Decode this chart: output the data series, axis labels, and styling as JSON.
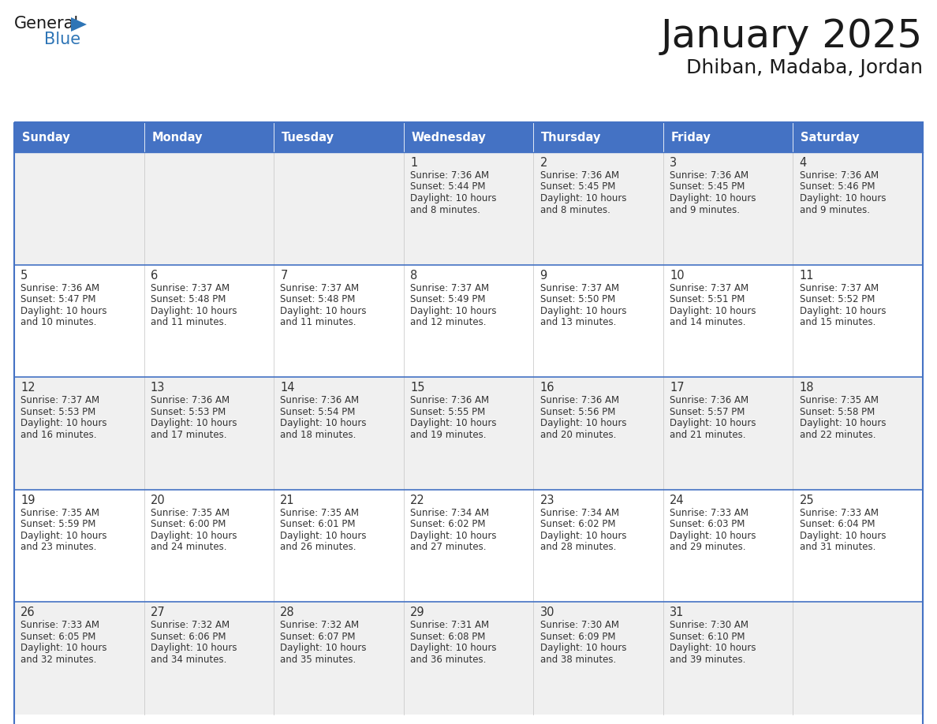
{
  "title": "January 2025",
  "subtitle": "Dhiban, Madaba, Jordan",
  "days_of_week": [
    "Sunday",
    "Monday",
    "Tuesday",
    "Wednesday",
    "Thursday",
    "Friday",
    "Saturday"
  ],
  "header_bg": "#4472C4",
  "header_text": "#FFFFFF",
  "cell_bg_light": "#F0F0F0",
  "cell_bg_white": "#FFFFFF",
  "border_color": "#4472C4",
  "row_separator_color": "#4472C4",
  "title_color": "#1a1a1a",
  "text_color": "#333333",
  "logo_general_color": "#1a1a1a",
  "logo_blue_color": "#2E75B6",
  "calendar_data": [
    [
      {
        "day": null,
        "sunrise": null,
        "sunset": null,
        "daylight": null
      },
      {
        "day": null,
        "sunrise": null,
        "sunset": null,
        "daylight": null
      },
      {
        "day": null,
        "sunrise": null,
        "sunset": null,
        "daylight": null
      },
      {
        "day": 1,
        "sunrise": "7:36 AM",
        "sunset": "5:44 PM",
        "daylight": "10 hours and 8 minutes"
      },
      {
        "day": 2,
        "sunrise": "7:36 AM",
        "sunset": "5:45 PM",
        "daylight": "10 hours and 8 minutes"
      },
      {
        "day": 3,
        "sunrise": "7:36 AM",
        "sunset": "5:45 PM",
        "daylight": "10 hours and 9 minutes"
      },
      {
        "day": 4,
        "sunrise": "7:36 AM",
        "sunset": "5:46 PM",
        "daylight": "10 hours and 9 minutes"
      }
    ],
    [
      {
        "day": 5,
        "sunrise": "7:36 AM",
        "sunset": "5:47 PM",
        "daylight": "10 hours and 10 minutes"
      },
      {
        "day": 6,
        "sunrise": "7:37 AM",
        "sunset": "5:48 PM",
        "daylight": "10 hours and 11 minutes"
      },
      {
        "day": 7,
        "sunrise": "7:37 AM",
        "sunset": "5:48 PM",
        "daylight": "10 hours and 11 minutes"
      },
      {
        "day": 8,
        "sunrise": "7:37 AM",
        "sunset": "5:49 PM",
        "daylight": "10 hours and 12 minutes"
      },
      {
        "day": 9,
        "sunrise": "7:37 AM",
        "sunset": "5:50 PM",
        "daylight": "10 hours and 13 minutes"
      },
      {
        "day": 10,
        "sunrise": "7:37 AM",
        "sunset": "5:51 PM",
        "daylight": "10 hours and 14 minutes"
      },
      {
        "day": 11,
        "sunrise": "7:37 AM",
        "sunset": "5:52 PM",
        "daylight": "10 hours and 15 minutes"
      }
    ],
    [
      {
        "day": 12,
        "sunrise": "7:37 AM",
        "sunset": "5:53 PM",
        "daylight": "10 hours and 16 minutes"
      },
      {
        "day": 13,
        "sunrise": "7:36 AM",
        "sunset": "5:53 PM",
        "daylight": "10 hours and 17 minutes"
      },
      {
        "day": 14,
        "sunrise": "7:36 AM",
        "sunset": "5:54 PM",
        "daylight": "10 hours and 18 minutes"
      },
      {
        "day": 15,
        "sunrise": "7:36 AM",
        "sunset": "5:55 PM",
        "daylight": "10 hours and 19 minutes"
      },
      {
        "day": 16,
        "sunrise": "7:36 AM",
        "sunset": "5:56 PM",
        "daylight": "10 hours and 20 minutes"
      },
      {
        "day": 17,
        "sunrise": "7:36 AM",
        "sunset": "5:57 PM",
        "daylight": "10 hours and 21 minutes"
      },
      {
        "day": 18,
        "sunrise": "7:35 AM",
        "sunset": "5:58 PM",
        "daylight": "10 hours and 22 minutes"
      }
    ],
    [
      {
        "day": 19,
        "sunrise": "7:35 AM",
        "sunset": "5:59 PM",
        "daylight": "10 hours and 23 minutes"
      },
      {
        "day": 20,
        "sunrise": "7:35 AM",
        "sunset": "6:00 PM",
        "daylight": "10 hours and 24 minutes"
      },
      {
        "day": 21,
        "sunrise": "7:35 AM",
        "sunset": "6:01 PM",
        "daylight": "10 hours and 26 minutes"
      },
      {
        "day": 22,
        "sunrise": "7:34 AM",
        "sunset": "6:02 PM",
        "daylight": "10 hours and 27 minutes"
      },
      {
        "day": 23,
        "sunrise": "7:34 AM",
        "sunset": "6:02 PM",
        "daylight": "10 hours and 28 minutes"
      },
      {
        "day": 24,
        "sunrise": "7:33 AM",
        "sunset": "6:03 PM",
        "daylight": "10 hours and 29 minutes"
      },
      {
        "day": 25,
        "sunrise": "7:33 AM",
        "sunset": "6:04 PM",
        "daylight": "10 hours and 31 minutes"
      }
    ],
    [
      {
        "day": 26,
        "sunrise": "7:33 AM",
        "sunset": "6:05 PM",
        "daylight": "10 hours and 32 minutes"
      },
      {
        "day": 27,
        "sunrise": "7:32 AM",
        "sunset": "6:06 PM",
        "daylight": "10 hours and 34 minutes"
      },
      {
        "day": 28,
        "sunrise": "7:32 AM",
        "sunset": "6:07 PM",
        "daylight": "10 hours and 35 minutes"
      },
      {
        "day": 29,
        "sunrise": "7:31 AM",
        "sunset": "6:08 PM",
        "daylight": "10 hours and 36 minutes"
      },
      {
        "day": 30,
        "sunrise": "7:30 AM",
        "sunset": "6:09 PM",
        "daylight": "10 hours and 38 minutes"
      },
      {
        "day": 31,
        "sunrise": "7:30 AM",
        "sunset": "6:10 PM",
        "daylight": "10 hours and 39 minutes"
      },
      {
        "day": null,
        "sunrise": null,
        "sunset": null,
        "daylight": null
      }
    ]
  ]
}
